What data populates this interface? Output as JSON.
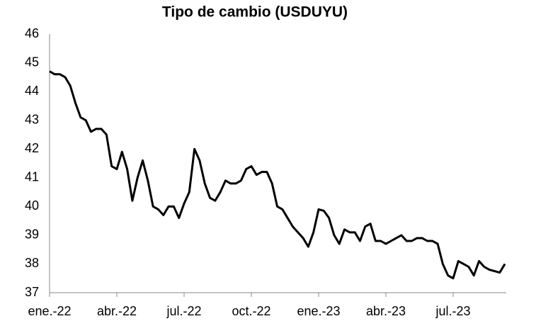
{
  "chart_data": {
    "type": "line",
    "title": "Tipo de cambio (USDUYU)",
    "categories": [
      "ene.-22",
      null,
      null,
      null,
      null,
      null,
      null,
      null,
      null,
      null,
      null,
      null,
      null,
      "abr.-22",
      null,
      null,
      null,
      null,
      null,
      null,
      null,
      null,
      null,
      null,
      null,
      null,
      "jul.-22",
      null,
      null,
      null,
      null,
      null,
      null,
      null,
      null,
      null,
      null,
      null,
      null,
      "oct.-22",
      null,
      null,
      null,
      null,
      null,
      null,
      null,
      null,
      null,
      null,
      null,
      null,
      "ene.-23",
      null,
      null,
      null,
      null,
      null,
      null,
      null,
      null,
      null,
      null,
      null,
      null,
      "abr.-23",
      null,
      null,
      null,
      null,
      null,
      null,
      null,
      null,
      null,
      null,
      null,
      null,
      "jul.-23",
      null,
      null,
      null,
      null,
      null,
      null,
      null,
      null,
      null,
      null
    ],
    "series": [
      {
        "name": "USDUYU",
        "color": "#000000",
        "values": [
          44.7,
          44.6,
          44.6,
          44.5,
          44.2,
          43.6,
          43.1,
          43.0,
          42.6,
          42.7,
          42.7,
          42.5,
          41.4,
          41.3,
          41.9,
          41.3,
          40.2,
          41.0,
          41.6,
          40.9,
          40.0,
          39.9,
          39.7,
          40.0,
          40.0,
          39.6,
          40.1,
          40.5,
          42.0,
          41.6,
          40.8,
          40.3,
          40.2,
          40.5,
          40.9,
          40.8,
          40.8,
          40.9,
          41.3,
          41.4,
          41.1,
          41.2,
          41.2,
          40.8,
          40.0,
          39.9,
          39.6,
          39.3,
          39.1,
          38.9,
          38.6,
          39.1,
          39.9,
          39.85,
          39.6,
          39.0,
          38.7,
          39.2,
          39.1,
          39.1,
          38.8,
          39.3,
          39.4,
          38.8,
          38.8,
          38.7,
          38.8,
          38.9,
          39.0,
          38.8,
          38.8,
          38.9,
          38.9,
          38.8,
          38.8,
          38.7,
          38.0,
          37.6,
          37.5,
          38.1,
          38.0,
          37.9,
          37.6,
          38.1,
          37.9,
          37.8,
          37.75,
          37.7,
          38.0
        ]
      }
    ],
    "ylim": [
      37,
      46
    ],
    "yticks": [
      37,
      38,
      39,
      40,
      41,
      42,
      43,
      44,
      45,
      46
    ],
    "grid": false
  }
}
